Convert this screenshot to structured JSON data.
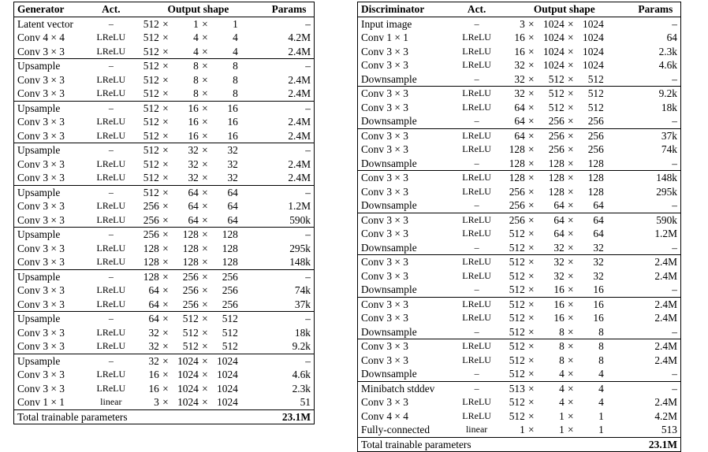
{
  "generator": {
    "headers": [
      "Generator",
      "Act.",
      "Output shape",
      "Params"
    ],
    "groups": [
      [
        [
          "Latent vector",
          "–",
          [
            "512",
            "1",
            "1"
          ],
          "–"
        ],
        [
          "Conv 4 × 4",
          "LReLU",
          [
            "512",
            "4",
            "4"
          ],
          "4.2M"
        ],
        [
          "Conv 3 × 3",
          "LReLU",
          [
            "512",
            "4",
            "4"
          ],
          "2.4M"
        ]
      ],
      [
        [
          "Upsample",
          "–",
          [
            "512",
            "8",
            "8"
          ],
          "–"
        ],
        [
          "Conv 3 × 3",
          "LReLU",
          [
            "512",
            "8",
            "8"
          ],
          "2.4M"
        ],
        [
          "Conv 3 × 3",
          "LReLU",
          [
            "512",
            "8",
            "8"
          ],
          "2.4M"
        ]
      ],
      [
        [
          "Upsample",
          "–",
          [
            "512",
            "16",
            "16"
          ],
          "–"
        ],
        [
          "Conv 3 × 3",
          "LReLU",
          [
            "512",
            "16",
            "16"
          ],
          "2.4M"
        ],
        [
          "Conv 3 × 3",
          "LReLU",
          [
            "512",
            "16",
            "16"
          ],
          "2.4M"
        ]
      ],
      [
        [
          "Upsample",
          "–",
          [
            "512",
            "32",
            "32"
          ],
          "–"
        ],
        [
          "Conv 3 × 3",
          "LReLU",
          [
            "512",
            "32",
            "32"
          ],
          "2.4M"
        ],
        [
          "Conv 3 × 3",
          "LReLU",
          [
            "512",
            "32",
            "32"
          ],
          "2.4M"
        ]
      ],
      [
        [
          "Upsample",
          "–",
          [
            "512",
            "64",
            "64"
          ],
          "–"
        ],
        [
          "Conv 3 × 3",
          "LReLU",
          [
            "256",
            "64",
            "64"
          ],
          "1.2M"
        ],
        [
          "Conv 3 × 3",
          "LReLU",
          [
            "256",
            "64",
            "64"
          ],
          "590k"
        ]
      ],
      [
        [
          "Upsample",
          "–",
          [
            "256",
            "128",
            "128"
          ],
          "–"
        ],
        [
          "Conv 3 × 3",
          "LReLU",
          [
            "128",
            "128",
            "128"
          ],
          "295k"
        ],
        [
          "Conv 3 × 3",
          "LReLU",
          [
            "128",
            "128",
            "128"
          ],
          "148k"
        ]
      ],
      [
        [
          "Upsample",
          "–",
          [
            "128",
            "256",
            "256"
          ],
          "–"
        ],
        [
          "Conv 3 × 3",
          "LReLU",
          [
            "64",
            "256",
            "256"
          ],
          "74k"
        ],
        [
          "Conv 3 × 3",
          "LReLU",
          [
            "64",
            "256",
            "256"
          ],
          "37k"
        ]
      ],
      [
        [
          "Upsample",
          "–",
          [
            "64",
            "512",
            "512"
          ],
          "–"
        ],
        [
          "Conv 3 × 3",
          "LReLU",
          [
            "32",
            "512",
            "512"
          ],
          "18k"
        ],
        [
          "Conv 3 × 3",
          "LReLU",
          [
            "32",
            "512",
            "512"
          ],
          "9.2k"
        ]
      ],
      [
        [
          "Upsample",
          "–",
          [
            "32",
            "1024",
            "1024"
          ],
          "–"
        ],
        [
          "Conv 3 × 3",
          "LReLU",
          [
            "16",
            "1024",
            "1024"
          ],
          "4.6k"
        ],
        [
          "Conv 3 × 3",
          "LReLU",
          [
            "16",
            "1024",
            "1024"
          ],
          "2.3k"
        ],
        [
          "Conv 1 × 1",
          "linear",
          [
            "3",
            "1024",
            "1024"
          ],
          "51"
        ]
      ]
    ],
    "total_label": "Total trainable parameters",
    "total_value": "23.1M"
  },
  "discriminator": {
    "headers": [
      "Discriminator",
      "Act.",
      "Output shape",
      "Params"
    ],
    "groups": [
      [
        [
          "Input image",
          "–",
          [
            "3",
            "1024",
            "1024"
          ],
          "–"
        ],
        [
          "Conv 1 × 1",
          "LReLU",
          [
            "16",
            "1024",
            "1024"
          ],
          "64"
        ],
        [
          "Conv 3 × 3",
          "LReLU",
          [
            "16",
            "1024",
            "1024"
          ],
          "2.3k"
        ],
        [
          "Conv 3 × 3",
          "LReLU",
          [
            "32",
            "1024",
            "1024"
          ],
          "4.6k"
        ],
        [
          "Downsample",
          "–",
          [
            "32",
            "512",
            "512"
          ],
          "–"
        ]
      ],
      [
        [
          "Conv 3 × 3",
          "LReLU",
          [
            "32",
            "512",
            "512"
          ],
          "9.2k"
        ],
        [
          "Conv 3 × 3",
          "LReLU",
          [
            "64",
            "512",
            "512"
          ],
          "18k"
        ],
        [
          "Downsample",
          "–",
          [
            "64",
            "256",
            "256"
          ],
          "–"
        ]
      ],
      [
        [
          "Conv 3 × 3",
          "LReLU",
          [
            "64",
            "256",
            "256"
          ],
          "37k"
        ],
        [
          "Conv 3 × 3",
          "LReLU",
          [
            "128",
            "256",
            "256"
          ],
          "74k"
        ],
        [
          "Downsample",
          "–",
          [
            "128",
            "128",
            "128"
          ],
          "–"
        ]
      ],
      [
        [
          "Conv 3 × 3",
          "LReLU",
          [
            "128",
            "128",
            "128"
          ],
          "148k"
        ],
        [
          "Conv 3 × 3",
          "LReLU",
          [
            "256",
            "128",
            "128"
          ],
          "295k"
        ],
        [
          "Downsample",
          "–",
          [
            "256",
            "64",
            "64"
          ],
          "–"
        ]
      ],
      [
        [
          "Conv 3 × 3",
          "LReLU",
          [
            "256",
            "64",
            "64"
          ],
          "590k"
        ],
        [
          "Conv 3 × 3",
          "LReLU",
          [
            "512",
            "64",
            "64"
          ],
          "1.2M"
        ],
        [
          "Downsample",
          "–",
          [
            "512",
            "32",
            "32"
          ],
          "–"
        ]
      ],
      [
        [
          "Conv 3 × 3",
          "LReLU",
          [
            "512",
            "32",
            "32"
          ],
          "2.4M"
        ],
        [
          "Conv 3 × 3",
          "LReLU",
          [
            "512",
            "32",
            "32"
          ],
          "2.4M"
        ],
        [
          "Downsample",
          "–",
          [
            "512",
            "16",
            "16"
          ],
          "–"
        ]
      ],
      [
        [
          "Conv 3 × 3",
          "LReLU",
          [
            "512",
            "16",
            "16"
          ],
          "2.4M"
        ],
        [
          "Conv 3 × 3",
          "LReLU",
          [
            "512",
            "16",
            "16"
          ],
          "2.4M"
        ],
        [
          "Downsample",
          "–",
          [
            "512",
            "8",
            "8"
          ],
          "–"
        ]
      ],
      [
        [
          "Conv 3 × 3",
          "LReLU",
          [
            "512",
            "8",
            "8"
          ],
          "2.4M"
        ],
        [
          "Conv 3 × 3",
          "LReLU",
          [
            "512",
            "8",
            "8"
          ],
          "2.4M"
        ],
        [
          "Downsample",
          "–",
          [
            "512",
            "4",
            "4"
          ],
          "–"
        ]
      ],
      [
        [
          "Minibatch stddev",
          "–",
          [
            "513",
            "4",
            "4"
          ],
          "–"
        ],
        [
          "Conv 3 × 3",
          "LReLU",
          [
            "512",
            "4",
            "4"
          ],
          "2.4M"
        ],
        [
          "Conv 4 × 4",
          "LReLU",
          [
            "512",
            "1",
            "1"
          ],
          "4.2M"
        ],
        [
          "Fully-connected",
          "linear",
          [
            "1",
            "1",
            "1"
          ],
          "513"
        ]
      ]
    ],
    "total_label": "Total trainable parameters",
    "total_value": "23.1M"
  }
}
